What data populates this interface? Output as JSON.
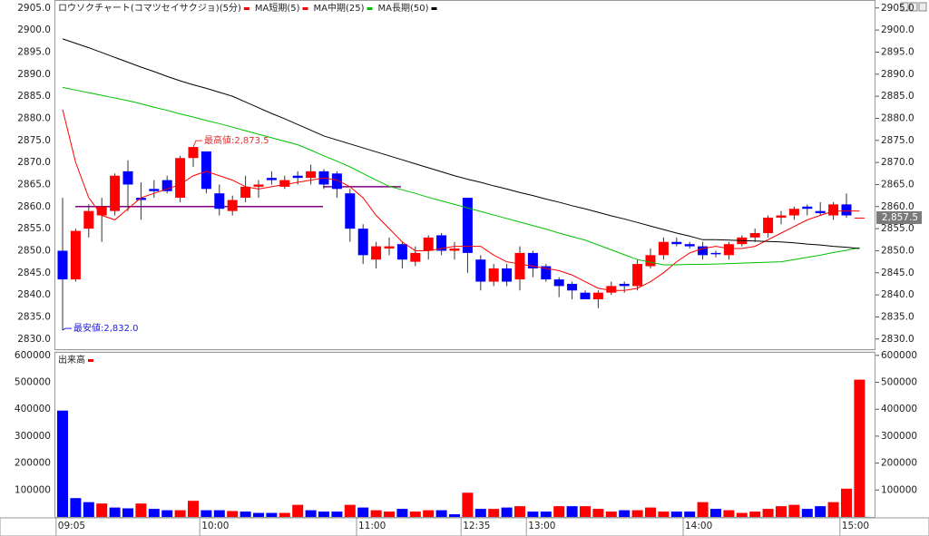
{
  "chart_data": [
    {
      "type": "candlestick",
      "title": "ロウソクチャート(コマツセイサクジョ)(5分)",
      "up_color": "#ff0000",
      "down_color": "#0000ff",
      "open": [
        2850,
        2843.5,
        2855,
        2858,
        2859,
        2868,
        2862,
        2864,
        2866,
        2862,
        2871,
        2872.5,
        2863,
        2859,
        2862,
        2864.5,
        2866.5,
        2864.5,
        2867,
        2866.5,
        2868,
        2867.5,
        2863,
        2855,
        2848,
        2850.5,
        2851.5,
        2847.5,
        2850,
        2853.5,
        2850,
        2862,
        2848,
        2843,
        2846,
        2843.5,
        2849.5,
        2846.5,
        2843.5,
        2842.5,
        2840.5,
        2839,
        2840.5,
        2842.5,
        2842,
        2846.5,
        2849,
        2852,
        2851.5,
        2851,
        2849.5,
        2849,
        2851.5,
        2853,
        2854,
        2857.5,
        2858,
        2860,
        2859,
        2858,
        2860.5,
        2857.5
      ],
      "close": [
        2843.5,
        2854.5,
        2859,
        2860,
        2867,
        2865,
        2861.5,
        2863.5,
        2863.5,
        2871,
        2873.5,
        2864,
        2859.5,
        2861.5,
        2864.5,
        2865,
        2866,
        2866,
        2866.5,
        2868,
        2865,
        2864,
        2855,
        2849,
        2851,
        2851,
        2848,
        2849.5,
        2853,
        2850,
        2850.5,
        2849.5,
        2843,
        2846,
        2843,
        2849.5,
        2846,
        2843.5,
        2842,
        2841,
        2839,
        2840.5,
        2842,
        2842,
        2847,
        2849,
        2852,
        2851.5,
        2851,
        2849,
        2849.2,
        2851.5,
        2853,
        2854,
        2857.5,
        2858,
        2859.5,
        2859.5,
        2858.5,
        2860.5,
        2858,
        2857.5
      ],
      "high": [
        2862,
        2855,
        2860.5,
        2862,
        2867.5,
        2870.5,
        2865.5,
        2866,
        2867,
        2871.5,
        2873.5,
        2872.5,
        2865,
        2862.5,
        2867,
        2866,
        2868,
        2867,
        2868,
        2869.5,
        2868.5,
        2868,
        2864,
        2856,
        2852,
        2853,
        2852,
        2851,
        2853.5,
        2854,
        2852,
        2862,
        2849,
        2847,
        2847,
        2851,
        2850,
        2847,
        2844,
        2843,
        2841,
        2841,
        2843,
        2843,
        2848,
        2850.5,
        2853,
        2853,
        2852,
        2852,
        2850,
        2852,
        2853.5,
        2855,
        2858,
        2859,
        2860,
        2860.5,
        2861,
        2861,
        2863,
        2857.5
      ],
      "low": [
        2832,
        2843,
        2853,
        2852,
        2858,
        2859,
        2857,
        2862,
        2863,
        2861,
        2869,
        2863,
        2858,
        2858,
        2861,
        2862,
        2865,
        2864,
        2865,
        2865,
        2864,
        2862,
        2852,
        2847,
        2846,
        2849,
        2846,
        2846.5,
        2848,
        2849,
        2848,
        2845,
        2841,
        2842,
        2842,
        2841,
        2844,
        2843,
        2839.5,
        2839,
        2839,
        2837,
        2840,
        2840.5,
        2841,
        2846,
        2848,
        2851,
        2850.5,
        2848,
        2848.5,
        2848,
        2851,
        2852,
        2853,
        2856,
        2857,
        2858,
        2858,
        2857,
        2857.5,
        2857.5
      ],
      "series": [
        {
          "name": "MA短期(5)",
          "color": "#ff0000",
          "values": [
            2882,
            2870,
            2862,
            2858,
            2857,
            2859.5,
            2862,
            2863,
            2864,
            2865,
            2867,
            2868,
            2867,
            2866,
            2864.5,
            2864,
            2864.5,
            2865,
            2865.5,
            2866,
            2866.5,
            2866,
            2864.5,
            2862,
            2858,
            2855,
            2852,
            2850,
            2850,
            2850.5,
            2851,
            2851,
            2851,
            2849,
            2847.5,
            2847,
            2846.5,
            2846,
            2845.5,
            2844.5,
            2843,
            2841.5,
            2841,
            2841,
            2841.5,
            2843,
            2845,
            2847.5,
            2849.5,
            2850.5,
            2851,
            2850.5,
            2850.5,
            2851,
            2852.5,
            2854,
            2855.5,
            2857,
            2858,
            2859,
            2859,
            2859
          ]
        },
        {
          "name": "MA中期(25)",
          "color": "#00c000",
          "values": [
            2887,
            2886.4,
            2885.8,
            2885.2,
            2884.6,
            2884,
            2883.3,
            2882.5,
            2881.8,
            2881,
            2880.3,
            2879.5,
            2878.8,
            2878,
            2877.2,
            2876.4,
            2875.6,
            2874.8,
            2874,
            2872.8,
            2871.5,
            2870.3,
            2869,
            2867.5,
            2866,
            2864.6,
            2863.8,
            2863,
            2862.1,
            2861.3,
            2860.5,
            2859.7,
            2858.9,
            2858.1,
            2857.3,
            2856.5,
            2855.7,
            2854.9,
            2854,
            2853.2,
            2852.4,
            2851.3,
            2850.2,
            2849.1,
            2848,
            2847.4,
            2846.8,
            2846.8,
            2846.9,
            2846.9,
            2847,
            2847.1,
            2847.2,
            2847.3,
            2847.4,
            2847.5,
            2848,
            2848.5,
            2849,
            2849.6,
            2850.1,
            2850.7
          ]
        },
        {
          "name": "MA長期(50)",
          "color": "#000000",
          "values": [
            2898,
            2897,
            2896,
            2894.9,
            2893.8,
            2892.7,
            2891.6,
            2890.6,
            2889.5,
            2888.5,
            2887.6,
            2886.8,
            2885.9,
            2885,
            2883.7,
            2882.4,
            2881.1,
            2879.9,
            2878.6,
            2877.3,
            2876,
            2875.1,
            2874.2,
            2873.3,
            2872.4,
            2871.5,
            2870.6,
            2869.7,
            2868.8,
            2867.9,
            2867,
            2866.2,
            2865.5,
            2864.7,
            2864,
            2863.2,
            2862.5,
            2861.7,
            2861,
            2860.2,
            2859.5,
            2858.7,
            2857.9,
            2857.2,
            2856.4,
            2855.6,
            2854.8,
            2854,
            2853.3,
            2852.5,
            2852.5,
            2852.4,
            2852.3,
            2852.2,
            2852.1,
            2852,
            2851.8,
            2851.5,
            2851.3,
            2851,
            2850.8,
            2850.5
          ]
        }
      ],
      "reference_lines": [
        {
          "value": 2860,
          "color": "#800080"
        },
        {
          "value": 2864.5,
          "color": "#800080"
        }
      ],
      "annotations": [
        {
          "value": 2873.5,
          "label": "最高値:2,873.5",
          "color": "#e03030"
        },
        {
          "value": 2832,
          "label": "最安値:2,832.0",
          "color": "#2020e0"
        }
      ],
      "last_price": {
        "value": 2857.5,
        "label": "2,857.5"
      },
      "ylim": [
        2827.7,
        2906.6
      ],
      "yticks": [
        {
          "value": 2830,
          "label": "2830.0"
        },
        {
          "value": 2835,
          "label": "2835.0"
        },
        {
          "value": 2840,
          "label": "2840.0"
        },
        {
          "value": 2845,
          "label": "2845.0"
        },
        {
          "value": 2850,
          "label": "2850.0"
        },
        {
          "value": 2855,
          "label": "2855.0"
        },
        {
          "value": 2860,
          "label": "2860.0"
        },
        {
          "value": 2865,
          "label": "2865.0"
        },
        {
          "value": 2870,
          "label": "2870.0"
        },
        {
          "value": 2875,
          "label": "2875.0"
        },
        {
          "value": 2880,
          "label": "2880.0"
        },
        {
          "value": 2885,
          "label": "2885.0"
        },
        {
          "value": 2890,
          "label": "2890.0"
        },
        {
          "value": 2895,
          "label": "2895.0"
        },
        {
          "value": 2900,
          "label": "2900.0"
        },
        {
          "value": 2905,
          "label": "2905.0"
        }
      ]
    },
    {
      "type": "bar",
      "title": "出来高",
      "title_color": "#ff0000",
      "categories": [
        "09:05",
        null,
        null,
        null,
        null,
        null,
        null,
        null,
        null,
        null,
        null,
        "10:00",
        null,
        null,
        null,
        null,
        null,
        null,
        null,
        null,
        null,
        null,
        null,
        "11:00",
        null,
        null,
        null,
        null,
        null,
        null,
        null,
        "12:35",
        null,
        null,
        null,
        null,
        "13:00",
        null,
        null,
        null,
        null,
        null,
        null,
        null,
        null,
        null,
        null,
        null,
        "14:00",
        null,
        null,
        null,
        null,
        null,
        null,
        null,
        null,
        null,
        null,
        null,
        "15:00",
        null
      ],
      "values": [
        395000,
        70000,
        55000,
        50000,
        35000,
        32000,
        50000,
        30000,
        25000,
        25000,
        60000,
        25000,
        25000,
        22000,
        20000,
        15000,
        15000,
        15000,
        45000,
        25000,
        20000,
        20000,
        45000,
        35000,
        25000,
        20000,
        30000,
        20000,
        25000,
        25000,
        10000,
        90000,
        30000,
        30000,
        35000,
        40000,
        20000,
        20000,
        40000,
        40000,
        40000,
        30000,
        20000,
        25000,
        25000,
        35000,
        20000,
        20000,
        20000,
        55000,
        30000,
        25000,
        15000,
        20000,
        30000,
        40000,
        45000,
        30000,
        40000,
        55000,
        105000,
        510000
      ],
      "colors": [
        "#0000ff",
        "#0000ff",
        "#0000ff",
        "#ff0000",
        "#0000ff",
        "#0000ff",
        "#ff0000",
        "#0000ff",
        "#0000ff",
        "#ff0000",
        "#ff0000",
        "#0000ff",
        "#0000ff",
        "#ff0000",
        "#0000ff",
        "#0000ff",
        "#0000ff",
        "#ff0000",
        "#ff0000",
        "#0000ff",
        "#0000ff",
        "#0000ff",
        "#ff0000",
        "#0000ff",
        "#ff0000",
        "#ff0000",
        "#0000ff",
        "#ff0000",
        "#ff0000",
        "#0000ff",
        "#0000ff",
        "#ff0000",
        "#0000ff",
        "#ff0000",
        "#0000ff",
        "#ff0000",
        "#0000ff",
        "#0000ff",
        "#ff0000",
        "#0000ff",
        "#ff0000",
        "#ff0000",
        "#ff0000",
        "#0000ff",
        "#ff0000",
        "#ff0000",
        "#ff0000",
        "#0000ff",
        "#0000ff",
        "#ff0000",
        "#0000ff",
        "#ff0000",
        "#ff0000",
        "#ff0000",
        "#ff0000",
        "#ff0000",
        "#ff0000",
        "#0000ff",
        "#0000ff",
        "#ff0000",
        "#ff0000",
        "#ff0000"
      ],
      "ylim": [
        0,
        613000
      ],
      "yticks": [
        100000,
        200000,
        300000,
        400000,
        500000,
        600000
      ]
    }
  ]
}
